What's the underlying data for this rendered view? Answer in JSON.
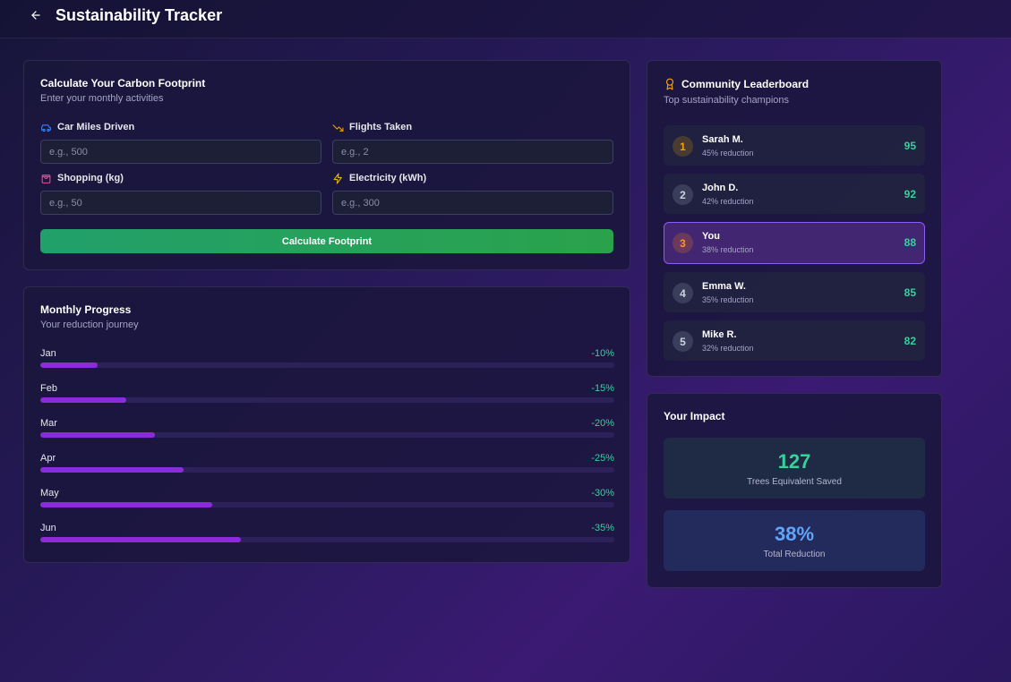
{
  "header": {
    "title": "Sustainability Tracker",
    "back_icon": "arrow-left-icon"
  },
  "calculator": {
    "title": "Calculate Your Carbon Footprint",
    "subtitle": "Enter your monthly activities",
    "fields": [
      {
        "label": "Car Miles Driven",
        "placeholder": "e.g., 500",
        "icon": "car-icon",
        "icon_color": "#3b82f6"
      },
      {
        "label": "Flights Taken",
        "placeholder": "e.g., 2",
        "icon": "trending-down-icon",
        "icon_color": "#f59e0b"
      },
      {
        "label": "Shopping (kg)",
        "placeholder": "e.g., 50",
        "icon": "shopping-bag-icon",
        "icon_color": "#ec4899"
      },
      {
        "label": "Electricity (kWh)",
        "placeholder": "e.g., 300",
        "icon": "zap-icon",
        "icon_color": "#eab308"
      }
    ],
    "button_label": "Calculate Footprint"
  },
  "progress": {
    "title": "Monthly Progress",
    "subtitle": "Your reduction journey",
    "months": [
      {
        "month": "Jan",
        "label": "-10%",
        "reduction": 10
      },
      {
        "month": "Feb",
        "label": "-15%",
        "reduction": 15
      },
      {
        "month": "Mar",
        "label": "-20%",
        "reduction": 20
      },
      {
        "month": "Apr",
        "label": "-25%",
        "reduction": 25
      },
      {
        "month": "May",
        "label": "-30%",
        "reduction": 30
      },
      {
        "month": "Jun",
        "label": "-35%",
        "reduction": 35
      }
    ]
  },
  "leaderboard": {
    "title": "Community Leaderboard",
    "subtitle": "Top sustainability champions",
    "icon": "award-icon",
    "entries": [
      {
        "rank": "1",
        "name": "Sarah M.",
        "reduction": "45% reduction",
        "score": "95"
      },
      {
        "rank": "2",
        "name": "John D.",
        "reduction": "42% reduction",
        "score": "92"
      },
      {
        "rank": "3",
        "name": "You",
        "reduction": "38% reduction",
        "score": "88"
      },
      {
        "rank": "4",
        "name": "Emma W.",
        "reduction": "35% reduction",
        "score": "85"
      },
      {
        "rank": "5",
        "name": "Mike R.",
        "reduction": "32% reduction",
        "score": "82"
      }
    ]
  },
  "impact": {
    "title": "Your Impact",
    "trees_value": "127",
    "trees_label": "Trees Equivalent Saved",
    "reduction_value": "38%",
    "reduction_label": "Total Reduction"
  },
  "colors": {
    "accent_green": "#34d399",
    "accent_blue": "#60a5fa",
    "progress_fill": "#8b2bdc",
    "button_green": "#22a06b"
  }
}
